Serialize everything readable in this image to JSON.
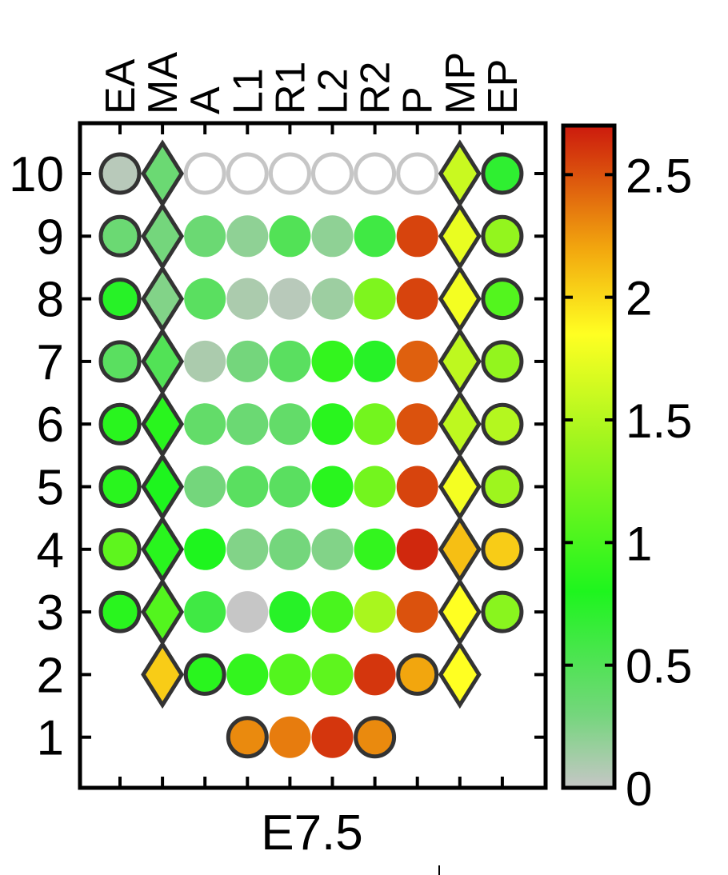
{
  "chart_data": {
    "type": "heatmap",
    "title": "",
    "xlabel": "E7.5",
    "ylabel": "",
    "columns": [
      "EA",
      "MA",
      "A",
      "L1",
      "R1",
      "L2",
      "R2",
      "P",
      "MP",
      "EP"
    ],
    "row_labels": [
      "10",
      "9",
      "8",
      "7",
      "6",
      "5",
      "4",
      "3",
      "2",
      "1"
    ],
    "colorbar": {
      "min": 0,
      "max": 2.7,
      "ticks": [
        "0",
        "0.5",
        "1",
        "1.5",
        "2",
        "2.5"
      ],
      "stops": [
        {
          "value": 0,
          "color": "#c6c6c6"
        },
        {
          "value": 0.3,
          "color": "#74d67c"
        },
        {
          "value": 0.8,
          "color": "#1ef51e"
        },
        {
          "value": 1.4,
          "color": "#9ef51e"
        },
        {
          "value": 1.85,
          "color": "#ffff22"
        },
        {
          "value": 2.2,
          "color": "#f2a60e"
        },
        {
          "value": 2.7,
          "color": "#cc1a0d"
        }
      ]
    },
    "marker_types": {
      "EA": "circle",
      "MA": "diamond",
      "A": "circle",
      "L1": "circle",
      "R1": "circle",
      "L2": "circle",
      "R2": "circle",
      "P": "circle",
      "MP": "diamond",
      "EP": "circle"
    },
    "rows": [
      {
        "label": "10",
        "cells": [
          {
            "col": "EA",
            "value": 0.05,
            "outline": true
          },
          {
            "col": "MA",
            "value": 0.35,
            "outline": true
          },
          {
            "col": "A",
            "value": null,
            "empty": true
          },
          {
            "col": "L1",
            "value": null,
            "empty": true
          },
          {
            "col": "R1",
            "value": null,
            "empty": true
          },
          {
            "col": "L2",
            "value": null,
            "empty": true
          },
          {
            "col": "R2",
            "value": null,
            "empty": true
          },
          {
            "col": "P",
            "value": null,
            "empty": true
          },
          {
            "col": "MP",
            "value": 1.6,
            "outline": true
          },
          {
            "col": "EP",
            "value": 0.7,
            "outline": true
          }
        ]
      },
      {
        "label": "9",
        "cells": [
          {
            "col": "EA",
            "value": 0.35,
            "outline": true
          },
          {
            "col": "MA",
            "value": 0.3,
            "outline": true
          },
          {
            "col": "A",
            "value": 0.35
          },
          {
            "col": "L1",
            "value": 0.2
          },
          {
            "col": "R1",
            "value": 0.5
          },
          {
            "col": "L2",
            "value": 0.2
          },
          {
            "col": "R2",
            "value": 0.6
          },
          {
            "col": "P",
            "value": 2.55
          },
          {
            "col": "MP",
            "value": 1.75,
            "outline": true
          },
          {
            "col": "EP",
            "value": 1.35,
            "outline": true
          }
        ]
      },
      {
        "label": "8",
        "cells": [
          {
            "col": "EA",
            "value": 0.75,
            "outline": true
          },
          {
            "col": "MA",
            "value": 0.25,
            "outline": true
          },
          {
            "col": "A",
            "value": 0.45
          },
          {
            "col": "L1",
            "value": 0.1
          },
          {
            "col": "R1",
            "value": 0.05
          },
          {
            "col": "L2",
            "value": 0.15
          },
          {
            "col": "R2",
            "value": 1.25
          },
          {
            "col": "P",
            "value": 2.55
          },
          {
            "col": "MP",
            "value": 1.8,
            "outline": true
          },
          {
            "col": "EP",
            "value": 1.05,
            "outline": true
          }
        ]
      },
      {
        "label": "7",
        "cells": [
          {
            "col": "EA",
            "value": 0.45,
            "outline": true
          },
          {
            "col": "MA",
            "value": 0.5,
            "outline": true
          },
          {
            "col": "A",
            "value": 0.1
          },
          {
            "col": "L1",
            "value": 0.3
          },
          {
            "col": "R1",
            "value": 0.45
          },
          {
            "col": "L2",
            "value": 0.9
          },
          {
            "col": "R2",
            "value": 0.75
          },
          {
            "col": "P",
            "value": 2.45
          },
          {
            "col": "MP",
            "value": 1.55,
            "outline": true
          },
          {
            "col": "EP",
            "value": 1.35,
            "outline": true
          }
        ]
      },
      {
        "label": "6",
        "cells": [
          {
            "col": "EA",
            "value": 0.85,
            "outline": true
          },
          {
            "col": "MA",
            "value": 0.85,
            "outline": true
          },
          {
            "col": "A",
            "value": 0.4
          },
          {
            "col": "L1",
            "value": 0.35
          },
          {
            "col": "R1",
            "value": 0.4
          },
          {
            "col": "L2",
            "value": 0.85
          },
          {
            "col": "R2",
            "value": 1.2
          },
          {
            "col": "P",
            "value": 2.5
          },
          {
            "col": "MP",
            "value": 1.55,
            "outline": true
          },
          {
            "col": "EP",
            "value": 1.5,
            "outline": true
          }
        ]
      },
      {
        "label": "5",
        "cells": [
          {
            "col": "EA",
            "value": 0.85,
            "outline": true
          },
          {
            "col": "MA",
            "value": 0.8,
            "outline": true
          },
          {
            "col": "A",
            "value": 0.3
          },
          {
            "col": "L1",
            "value": 0.45
          },
          {
            "col": "R1",
            "value": 0.45
          },
          {
            "col": "L2",
            "value": 0.85
          },
          {
            "col": "R2",
            "value": 1.2
          },
          {
            "col": "P",
            "value": 2.55
          },
          {
            "col": "MP",
            "value": 1.8,
            "outline": true
          },
          {
            "col": "EP",
            "value": 1.4,
            "outline": true
          }
        ]
      },
      {
        "label": "4",
        "cells": [
          {
            "col": "EA",
            "value": 1.1,
            "outline": true
          },
          {
            "col": "MA",
            "value": 0.85,
            "outline": true
          },
          {
            "col": "A",
            "value": 0.8
          },
          {
            "col": "L1",
            "value": 0.25
          },
          {
            "col": "R1",
            "value": 0.3
          },
          {
            "col": "L2",
            "value": 0.25
          },
          {
            "col": "R2",
            "value": 0.9
          },
          {
            "col": "P",
            "value": 2.65
          },
          {
            "col": "MP",
            "value": 2.1,
            "outline": true
          },
          {
            "col": "EP",
            "value": 2.05,
            "outline": true
          }
        ]
      },
      {
        "label": "3",
        "cells": [
          {
            "col": "EA",
            "value": 0.85,
            "outline": true
          },
          {
            "col": "MA",
            "value": 1.05,
            "outline": true
          },
          {
            "col": "A",
            "value": 0.6
          },
          {
            "col": "L1",
            "value": 0.0
          },
          {
            "col": "R1",
            "value": 0.75
          },
          {
            "col": "L2",
            "value": 1.0
          },
          {
            "col": "R2",
            "value": 1.45
          },
          {
            "col": "P",
            "value": 2.5
          },
          {
            "col": "MP",
            "value": 1.85,
            "outline": true
          },
          {
            "col": "EP",
            "value": 1.3,
            "outline": true
          }
        ]
      },
      {
        "label": "2",
        "cells": [
          {
            "col": "EA",
            "value": null,
            "absent": true
          },
          {
            "col": "MA",
            "value": 2.05,
            "outline": true
          },
          {
            "col": "A",
            "value": 0.85,
            "outline": true
          },
          {
            "col": "L1",
            "value": 0.9
          },
          {
            "col": "R1",
            "value": 1.05
          },
          {
            "col": "L2",
            "value": 1.1
          },
          {
            "col": "R2",
            "value": 2.6
          },
          {
            "col": "P",
            "value": 2.2,
            "outline": true
          },
          {
            "col": "MP",
            "value": 1.85,
            "outline": true
          },
          {
            "col": "EP",
            "value": null,
            "absent": true
          }
        ]
      },
      {
        "label": "1",
        "cells": [
          {
            "col": "EA",
            "value": null,
            "absent": true
          },
          {
            "col": "MA",
            "value": null,
            "absent": true
          },
          {
            "col": "A",
            "value": null,
            "absent": true
          },
          {
            "col": "L1",
            "value": 2.3,
            "outline": true
          },
          {
            "col": "R1",
            "value": 2.35
          },
          {
            "col": "L2",
            "value": 2.6
          },
          {
            "col": "R2",
            "value": 2.3,
            "outline": true
          },
          {
            "col": "P",
            "value": null,
            "absent": true
          },
          {
            "col": "MP",
            "value": null,
            "absent": true
          },
          {
            "col": "EP",
            "value": null,
            "absent": true
          }
        ]
      }
    ]
  }
}
